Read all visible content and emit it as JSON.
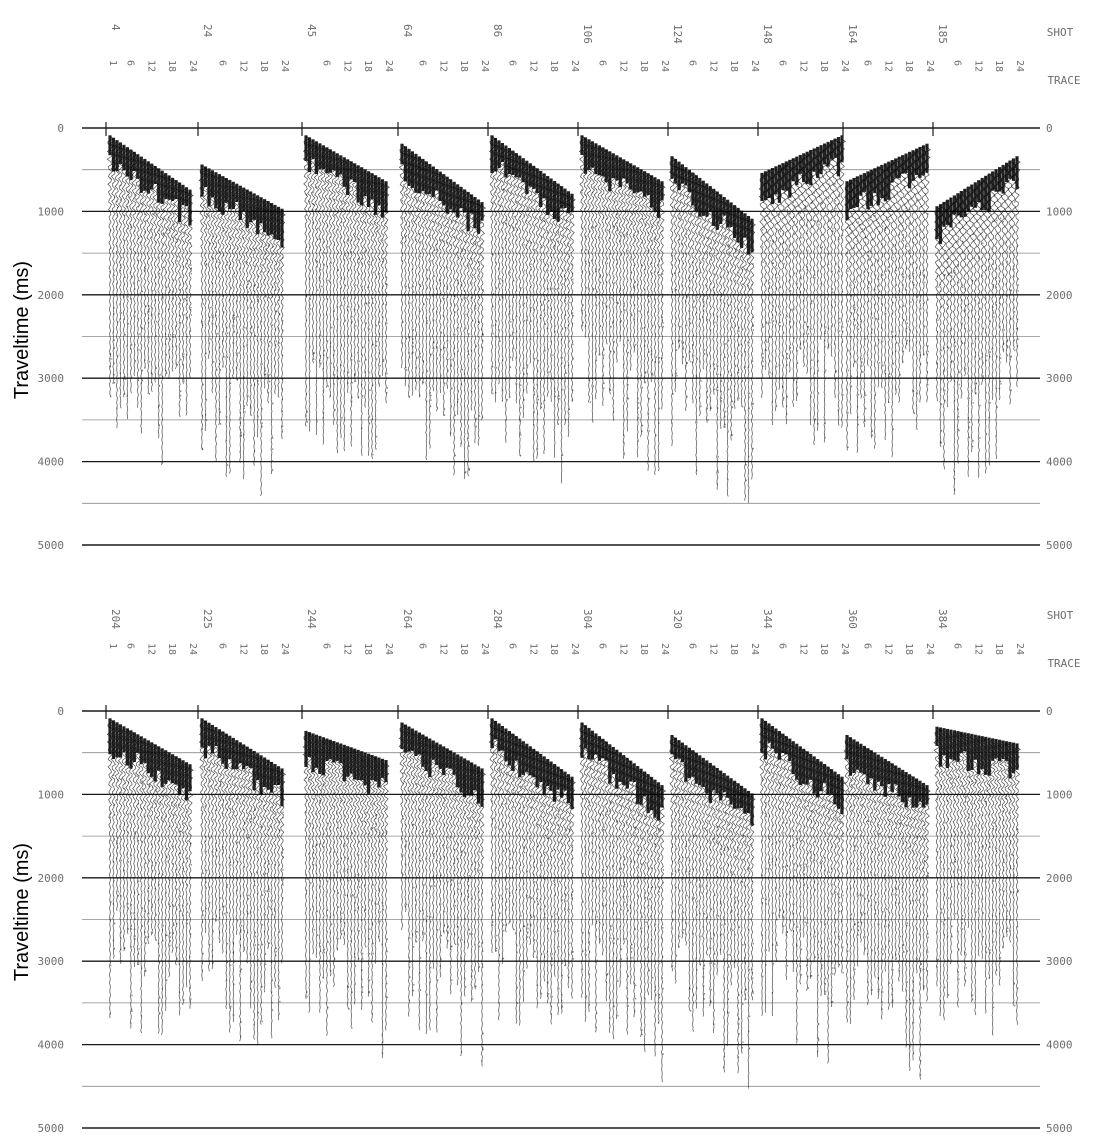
{
  "chart_data": [
    {
      "type": "heatmap",
      "panel": "top",
      "ylabel": "Traveltime (ms)",
      "ylim": [
        0,
        5000
      ],
      "reversed_y": true,
      "grid": true,
      "yticks": [
        0,
        1000,
        2000,
        3000,
        4000,
        5000
      ],
      "ytick_labels": [
        "0",
        "1000",
        "2000",
        "3000",
        "4000",
        "5000"
      ],
      "shot_axis_label": "SHOT",
      "trace_axis_label": "TRACE",
      "shots": [
        "4",
        "24",
        "45",
        "64",
        "86",
        "106",
        "124",
        "148",
        "164",
        "185"
      ],
      "trace_labels": [
        "1",
        "6",
        "12",
        "18",
        "24"
      ],
      "first_break_ms": [
        [
          100,
          750
        ],
        [
          450,
          980
        ],
        [
          100,
          650
        ],
        [
          200,
          900
        ],
        [
          100,
          800
        ],
        [
          100,
          650
        ],
        [
          350,
          1100
        ],
        [
          550,
          100
        ],
        [
          650,
          200
        ],
        [
          950,
          350
        ]
      ]
    },
    {
      "type": "heatmap",
      "panel": "bottom",
      "ylabel": "Traveltime (ms)",
      "ylim": [
        0,
        5000
      ],
      "reversed_y": true,
      "grid": true,
      "yticks": [
        0,
        1000,
        2000,
        3000,
        4000,
        5000
      ],
      "ytick_labels": [
        "0",
        "1000",
        "2000",
        "3000",
        "4000",
        "5000"
      ],
      "shot_axis_label": "SHOT",
      "trace_axis_label": "TRACE",
      "shots": [
        "204",
        "225",
        "244",
        "264",
        "284",
        "304",
        "320",
        "344",
        "360",
        "384"
      ],
      "trace_labels": [
        "1",
        "6",
        "12",
        "18",
        "24"
      ],
      "first_break_ms": [
        [
          100,
          650
        ],
        [
          100,
          700
        ],
        [
          250,
          600
        ],
        [
          150,
          700
        ],
        [
          100,
          800
        ],
        [
          150,
          900
        ],
        [
          300,
          1000
        ],
        [
          100,
          800
        ],
        [
          300,
          900
        ],
        [
          200,
          400
        ]
      ]
    }
  ]
}
